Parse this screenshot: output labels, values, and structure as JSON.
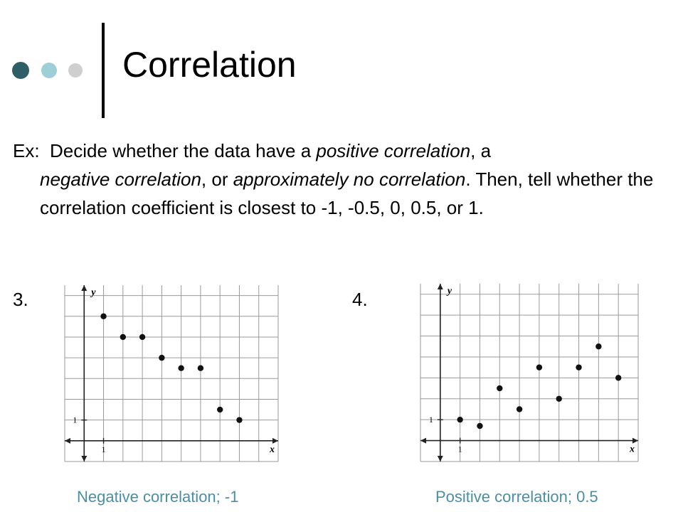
{
  "slide": {
    "title": "Correlation",
    "accent_colors": {
      "dot_dark": "#2f5f66",
      "dot_mid": "#9fcfd6",
      "dot_light": "#cfcfcf",
      "answer_text": "#4a8fa3"
    },
    "prompt": {
      "label": "Ex:",
      "t1": "Decide whether the data have a ",
      "e1": "positive correlation",
      "t2": ", a ",
      "e2": "negative correlation",
      "t3": ", or ",
      "e3": "approximately no correlation",
      "t4": ". Then, tell whether the correlation coefficient is closest to -1, -0.5, 0, 0.5, or 1."
    }
  },
  "problems": [
    {
      "number": "3.",
      "answer": "Negative correlation; -1",
      "chart_data": {
        "type": "scatter",
        "xlabel": "x",
        "ylabel": "y",
        "x_tick_label": "1",
        "y_tick_label": "1",
        "xlim": [
          -1,
          10
        ],
        "ylim": [
          -1,
          7.5
        ],
        "grid": true,
        "points": [
          [
            1,
            6
          ],
          [
            2,
            5
          ],
          [
            3,
            5
          ],
          [
            4,
            4
          ],
          [
            5,
            3.5
          ],
          [
            6,
            3.5
          ],
          [
            7,
            1.5
          ],
          [
            8,
            1
          ]
        ]
      }
    },
    {
      "number": "4.",
      "answer": "Positive correlation; 0.5",
      "chart_data": {
        "type": "scatter",
        "xlabel": "x",
        "ylabel": "y",
        "x_tick_label": "1",
        "y_tick_label": "1",
        "xlim": [
          -1,
          10
        ],
        "ylim": [
          -1,
          7.5
        ],
        "grid": true,
        "points": [
          [
            1,
            1
          ],
          [
            2,
            0.7
          ],
          [
            3,
            2.5
          ],
          [
            4,
            1.5
          ],
          [
            5,
            3.5
          ],
          [
            6,
            2
          ],
          [
            7,
            3.5
          ],
          [
            8,
            4.5
          ],
          [
            9,
            3
          ]
        ]
      }
    }
  ]
}
